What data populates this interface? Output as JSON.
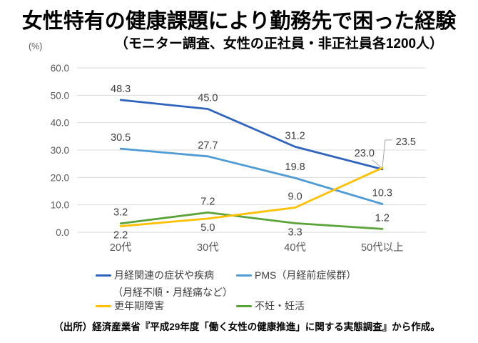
{
  "header": {
    "title": "女性特有の健康課題により勤務先で困った経験",
    "subtitle": "（モニター調査、女性の正社員・非正社員各1200人）"
  },
  "chart_data": {
    "type": "line",
    "title": "女性特有の健康課題により勤務先で困った経験",
    "unit_label": "(%)",
    "categories": [
      "20代",
      "30代",
      "40代",
      "50代以上"
    ],
    "series": [
      {
        "name": "月経関連の症状や疾病",
        "note": "（月経不順・月経痛など）",
        "color": "#2E64BE",
        "values": [
          48.3,
          45.0,
          31.2,
          23.0
        ]
      },
      {
        "name": "PMS（月経前症候群）",
        "color": "#4E9BD5",
        "values": [
          30.5,
          27.7,
          19.8,
          10.3
        ]
      },
      {
        "name": "更年期障害",
        "color": "#FFC000",
        "values": [
          2.2,
          5.0,
          9.0,
          23.5
        ]
      },
      {
        "name": "不妊・妊活",
        "color": "#5AA338",
        "values": [
          3.2,
          7.2,
          3.3,
          1.2
        ]
      }
    ],
    "ylim": [
      0,
      60
    ],
    "ytick_step": 10,
    "ytick_labels": [
      "0.0",
      "10.0",
      "20.0",
      "30.0",
      "40.0",
      "50.0",
      "60.0"
    ],
    "grid": true,
    "gridline_color": "#D9D9D9",
    "leader_line_color": "#A6A6A6",
    "legend_position": "bottom",
    "label_placements": [
      [
        "above",
        "above",
        "above",
        "callout-left"
      ],
      [
        "above",
        "above",
        "above",
        "above"
      ],
      [
        "below",
        "below",
        "above",
        "callout-bracket"
      ],
      [
        "above",
        "above",
        "below",
        "above"
      ]
    ]
  },
  "source": "（出所）経済産業省『平成29年度「働く女性の健康推進」に関する実態調査』から作成。"
}
